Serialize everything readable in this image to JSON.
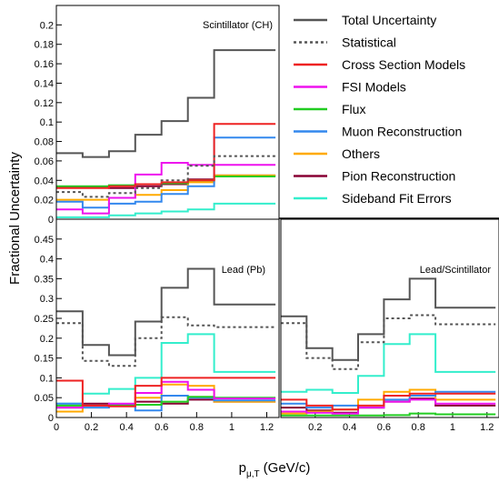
{
  "figure": {
    "ylabel": "Fractional Uncertainty",
    "xlabel_main": "p",
    "xlabel_sub": "μ,T",
    "xlabel_unit": "(GeV/c)"
  },
  "legend": [
    {
      "name": "Total Uncertainty",
      "color": "#555555",
      "dashed": false
    },
    {
      "name": "Statistical",
      "color": "#555555",
      "dashed": true
    },
    {
      "name": "Cross Section Models",
      "color": "#ee2222",
      "dashed": false
    },
    {
      "name": "FSI Models",
      "color": "#ee11ee",
      "dashed": false
    },
    {
      "name": "Flux",
      "color": "#22cc22",
      "dashed": false
    },
    {
      "name": "Muon Reconstruction",
      "color": "#3388ee",
      "dashed": false
    },
    {
      "name": "Others",
      "color": "#ffaa00",
      "dashed": false
    },
    {
      "name": "Pion Reconstruction",
      "color": "#880033",
      "dashed": false
    },
    {
      "name": "Sideband Fit Errors",
      "color": "#33eecc",
      "dashed": false
    }
  ],
  "chart_data": [
    {
      "type": "line",
      "title": "Scintillator (CH)",
      "bin_edges": [
        0,
        0.15,
        0.3,
        0.45,
        0.6,
        0.75,
        0.9,
        1.25
      ],
      "ylim": [
        0,
        0.22
      ],
      "yticks": [
        0,
        0.02,
        0.04,
        0.06,
        0.08,
        0.1,
        0.12,
        0.14,
        0.16,
        0.18,
        0.2
      ],
      "ytick_labels": [
        "0",
        "0.02",
        "0.04",
        "0.06",
        "0.08",
        "0.1",
        "0.12",
        "0.14",
        "0.16",
        "0.18",
        "0.2"
      ],
      "xticks": [],
      "xtick_labels": [],
      "series": [
        {
          "name": "Total Uncertainty",
          "values": [
            0.068,
            0.064,
            0.07,
            0.087,
            0.101,
            0.125,
            0.174
          ]
        },
        {
          "name": "Statistical",
          "values": [
            0.028,
            0.023,
            0.027,
            0.032,
            0.04,
            0.055,
            0.065
          ]
        },
        {
          "name": "Cross Section Models",
          "values": [
            0.032,
            0.032,
            0.034,
            0.036,
            0.038,
            0.04,
            0.098
          ]
        },
        {
          "name": "FSI Models",
          "values": [
            0.01,
            0.006,
            0.022,
            0.046,
            0.058,
            0.056,
            0.056
          ]
        },
        {
          "name": "Flux",
          "values": [
            0.034,
            0.034,
            0.035,
            0.036,
            0.037,
            0.04,
            0.044
          ]
        },
        {
          "name": "Muon Reconstruction",
          "values": [
            0.018,
            0.012,
            0.016,
            0.018,
            0.026,
            0.034,
            0.084
          ]
        },
        {
          "name": "Others",
          "values": [
            0.02,
            0.02,
            0.022,
            0.025,
            0.03,
            0.038,
            0.045
          ]
        },
        {
          "name": "Pion Reconstruction",
          "values": [
            0.033,
            0.033,
            0.032,
            0.034,
            0.036,
            0.041,
            0.045
          ]
        },
        {
          "name": "Sideband Fit Errors",
          "values": [
            0.002,
            0.002,
            0.004,
            0.006,
            0.008,
            0.01,
            0.016
          ]
        }
      ]
    },
    {
      "type": "line",
      "title": "Lead (Pb)",
      "bin_edges": [
        0,
        0.15,
        0.3,
        0.45,
        0.6,
        0.75,
        0.9,
        1.25
      ],
      "ylim": [
        0,
        0.5
      ],
      "yticks": [
        0,
        0.05,
        0.1,
        0.15,
        0.2,
        0.25,
        0.3,
        0.35,
        0.4,
        0.45
      ],
      "ytick_labels": [
        "0",
        "0.05",
        "0.1",
        "0.15",
        "0.2",
        "0.25",
        "0.3",
        "0.35",
        "0.4",
        "0.45"
      ],
      "xticks": [
        0,
        0.2,
        0.4,
        0.6,
        0.8,
        1,
        1.2
      ],
      "xtick_labels": [
        "0",
        "0.2",
        "0.4",
        "0.6",
        "0.8",
        "1",
        "1.2"
      ],
      "series": [
        {
          "name": "Total Uncertainty",
          "values": [
            0.268,
            0.183,
            0.157,
            0.242,
            0.327,
            0.375,
            0.285
          ]
        },
        {
          "name": "Statistical",
          "values": [
            0.238,
            0.143,
            0.13,
            0.2,
            0.253,
            0.232,
            0.228
          ]
        },
        {
          "name": "Cross Section Models",
          "values": [
            0.093,
            0.03,
            0.028,
            0.08,
            0.1,
            0.1,
            0.1
          ]
        },
        {
          "name": "FSI Models",
          "values": [
            0.025,
            0.03,
            0.035,
            0.062,
            0.09,
            0.07,
            0.048
          ]
        },
        {
          "name": "Flux",
          "values": [
            0.03,
            0.03,
            0.03,
            0.032,
            0.04,
            0.052,
            0.05
          ]
        },
        {
          "name": "Muon Reconstruction",
          "values": [
            0.035,
            0.025,
            0.032,
            0.018,
            0.055,
            0.05,
            0.043
          ]
        },
        {
          "name": "Others",
          "values": [
            0.015,
            0.03,
            0.032,
            0.05,
            0.083,
            0.08,
            0.04
          ]
        },
        {
          "name": "Pion Reconstruction",
          "values": [
            0.025,
            0.035,
            0.032,
            0.04,
            0.035,
            0.045,
            0.04
          ]
        },
        {
          "name": "Sideband Fit Errors",
          "values": [
            0.035,
            0.06,
            0.072,
            0.1,
            0.188,
            0.21,
            0.115
          ]
        }
      ]
    },
    {
      "type": "line",
      "title": "Lead/Scintillator",
      "bin_edges": [
        0,
        0.15,
        0.3,
        0.45,
        0.6,
        0.75,
        0.9,
        1.25
      ],
      "ylim": [
        0,
        0.5
      ],
      "yticks": [],
      "ytick_labels": [],
      "xticks": [
        0.2,
        0.4,
        0.6,
        0.8,
        1,
        1.2
      ],
      "xtick_labels": [
        "0.2",
        "0.4",
        "0.6",
        "0.8",
        "1",
        "1.2"
      ],
      "series": [
        {
          "name": "Total Uncertainty",
          "values": [
            0.255,
            0.175,
            0.145,
            0.21,
            0.298,
            0.35,
            0.277
          ]
        },
        {
          "name": "Statistical",
          "values": [
            0.238,
            0.15,
            0.122,
            0.19,
            0.25,
            0.258,
            0.235
          ]
        },
        {
          "name": "Cross Section Models",
          "values": [
            0.045,
            0.03,
            0.02,
            0.03,
            0.055,
            0.06,
            0.06
          ]
        },
        {
          "name": "FSI Models",
          "values": [
            0.015,
            0.012,
            0.01,
            0.025,
            0.04,
            0.045,
            0.035
          ]
        },
        {
          "name": "Flux",
          "values": [
            0.005,
            0.005,
            0.005,
            0.005,
            0.006,
            0.01,
            0.008
          ]
        },
        {
          "name": "Muon Reconstruction",
          "values": [
            0.035,
            0.025,
            0.03,
            0.025,
            0.045,
            0.055,
            0.065
          ]
        },
        {
          "name": "Others",
          "values": [
            0.01,
            0.015,
            0.02,
            0.045,
            0.065,
            0.07,
            0.045
          ]
        },
        {
          "name": "Pion Reconstruction",
          "values": [
            0.025,
            0.018,
            0.012,
            0.025,
            0.04,
            0.048,
            0.03
          ]
        },
        {
          "name": "Sideband Fit Errors",
          "values": [
            0.065,
            0.07,
            0.062,
            0.105,
            0.185,
            0.21,
            0.115
          ]
        }
      ]
    }
  ]
}
